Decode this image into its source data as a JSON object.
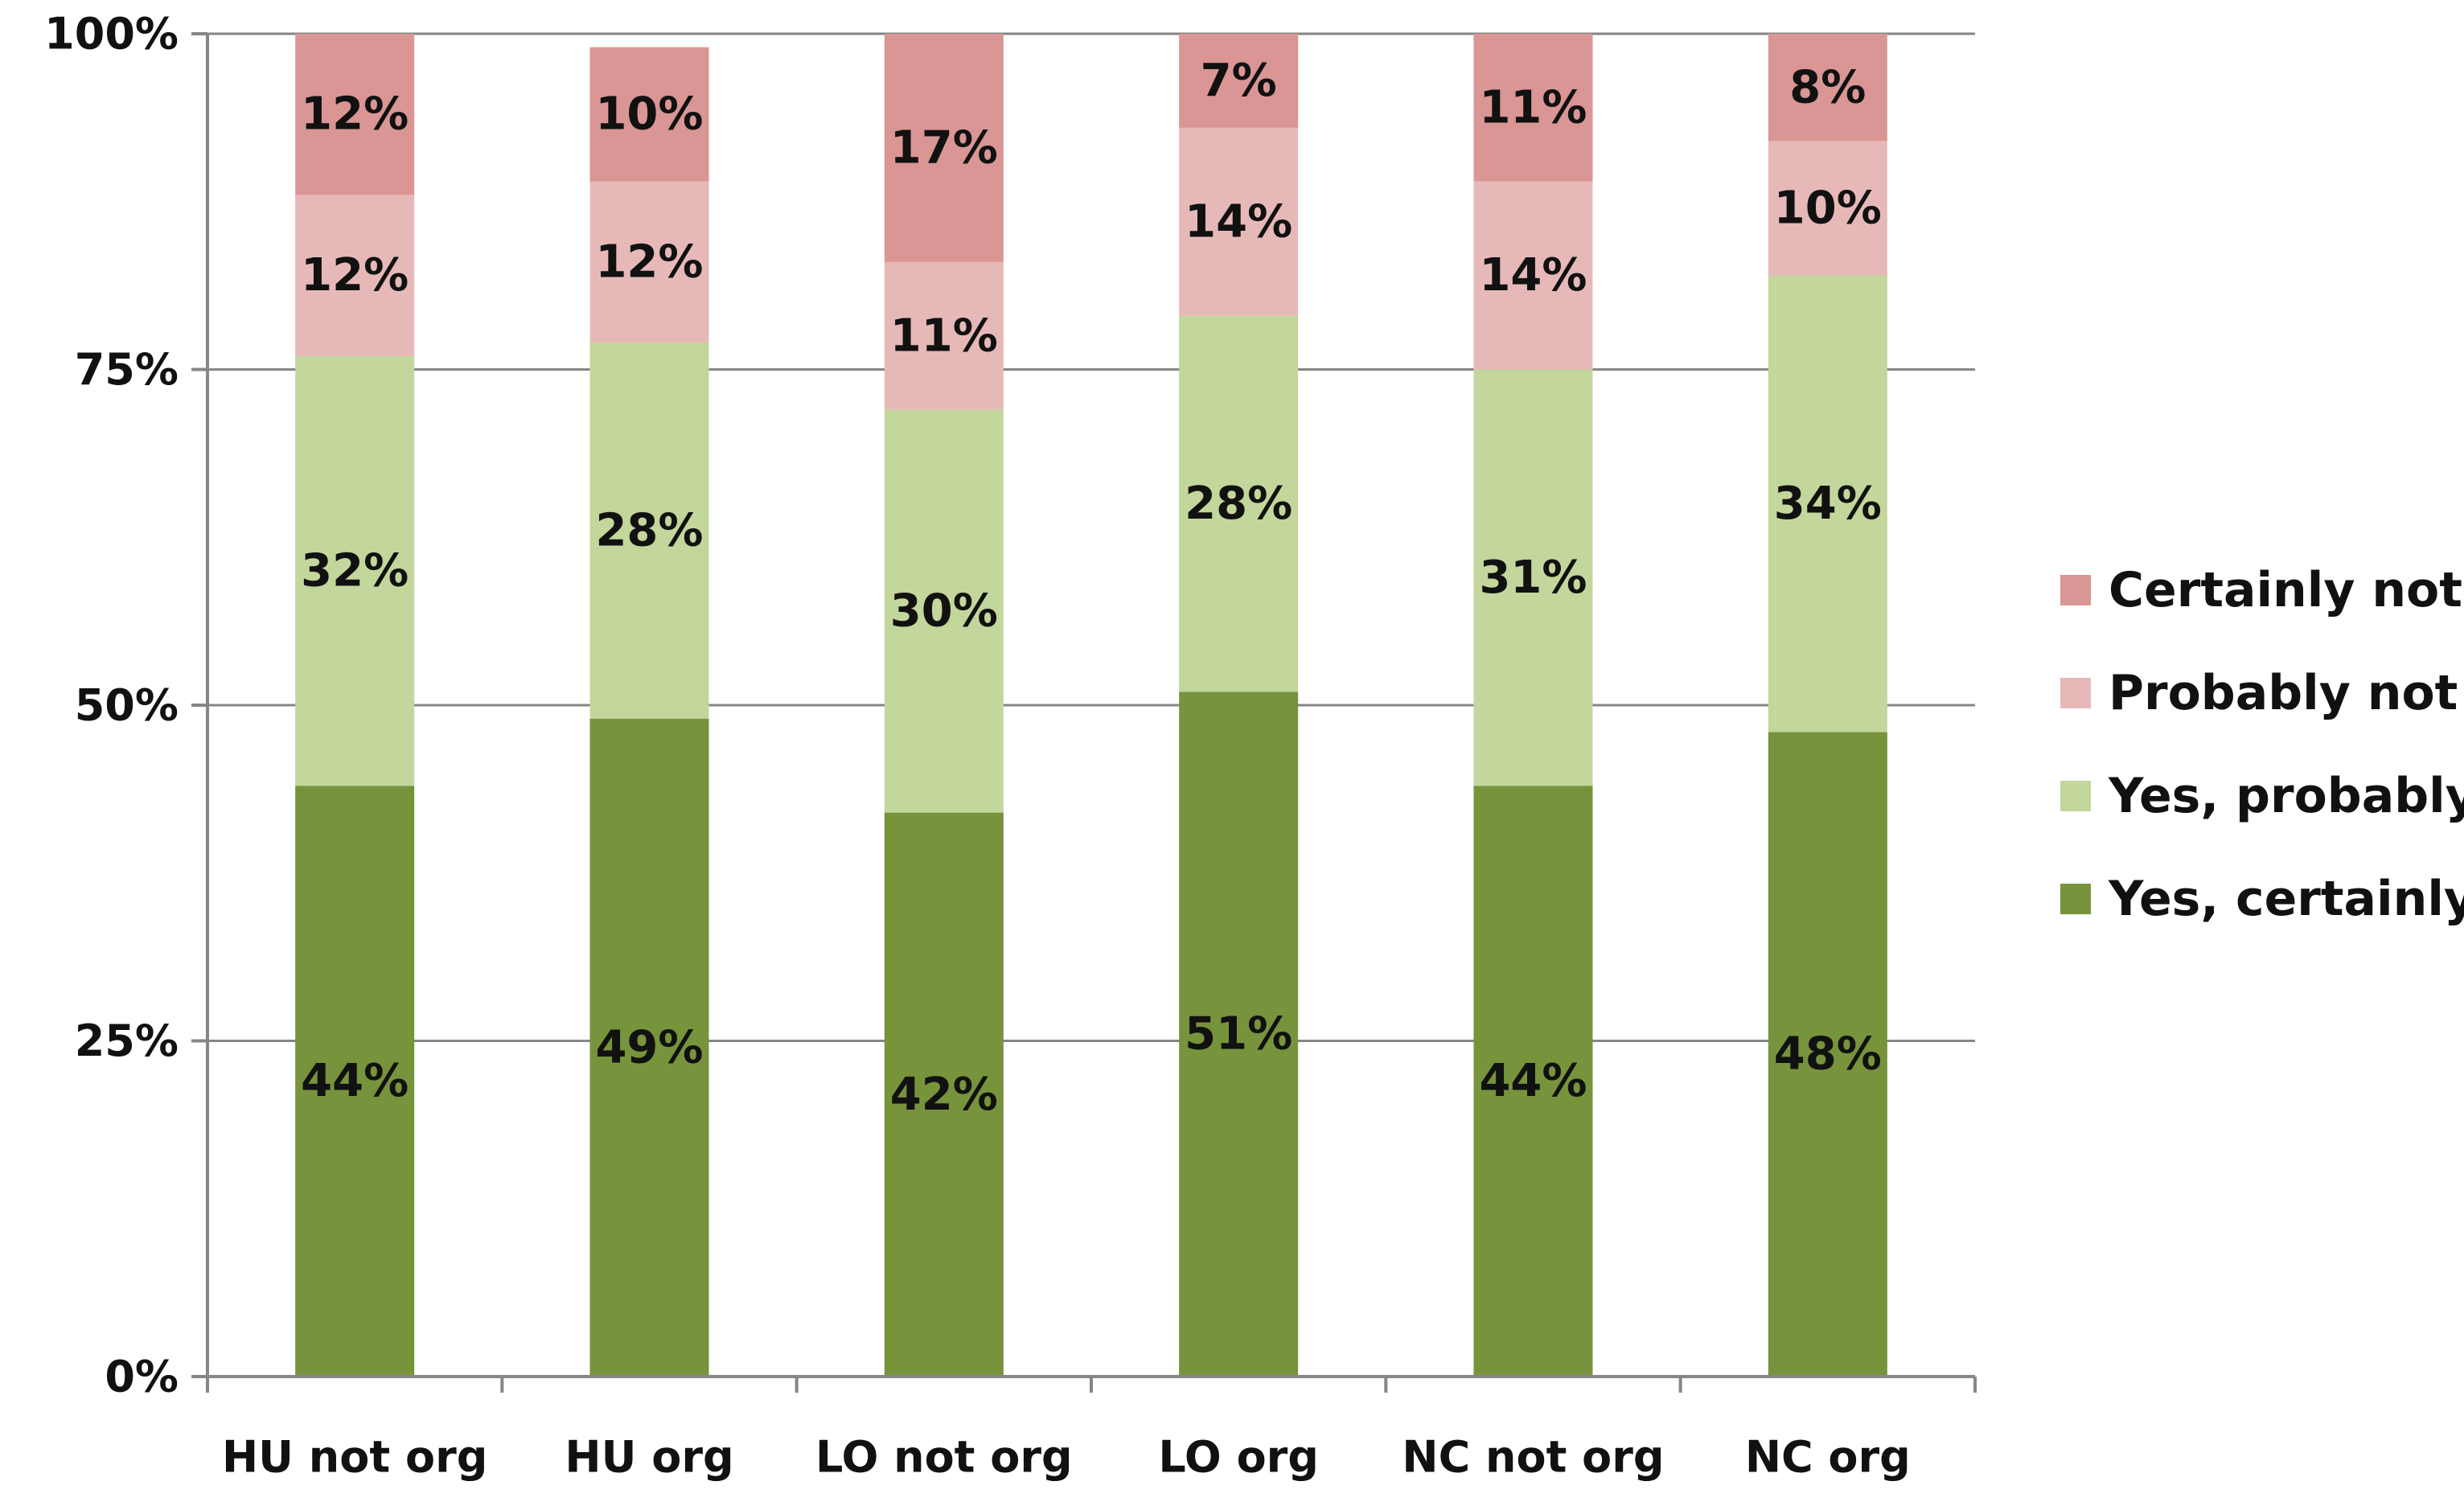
{
  "chart_data": {
    "type": "bar",
    "stacked": true,
    "categories": [
      "HU not org",
      "HU org",
      "LO not org",
      "LO org",
      "NC not org",
      "NC org"
    ],
    "series": [
      {
        "name": "Yes, certainly",
        "color": "#77933c",
        "values": [
          44,
          49,
          42,
          51,
          44,
          48
        ],
        "labels": [
          "44%",
          "49%",
          "42%",
          "51%",
          "44%",
          "48%"
        ]
      },
      {
        "name": "Yes, probably",
        "color": "#c3d69b",
        "values": [
          32,
          28,
          30,
          28,
          31,
          34
        ],
        "labels": [
          "32%",
          "28%",
          "30%",
          "28%",
          "31%",
          "34%"
        ]
      },
      {
        "name": "Probably not",
        "color": "#e6b9b8",
        "values": [
          12,
          12,
          11,
          14,
          14,
          10
        ],
        "labels": [
          "12%",
          "12%",
          "11%",
          "14%",
          "14%",
          "10%"
        ]
      },
      {
        "name": "Certainly not",
        "color": "#d99694",
        "values": [
          12,
          10,
          17,
          7,
          11,
          8
        ],
        "labels": [
          "12%",
          "10%",
          "17%",
          "7%",
          "11%",
          "8%"
        ]
      }
    ],
    "title": "",
    "xlabel": "",
    "ylabel": "",
    "ylim": [
      0,
      100
    ],
    "yticks": [
      0,
      25,
      50,
      75,
      100
    ],
    "ytick_labels": [
      "0%",
      "25%",
      "50%",
      "75%",
      "100%"
    ],
    "grid": true,
    "legend_position": "right",
    "legend_order": [
      "Certainly not",
      "Probably not",
      "Yes, probably",
      "Yes, certainly"
    ]
  }
}
